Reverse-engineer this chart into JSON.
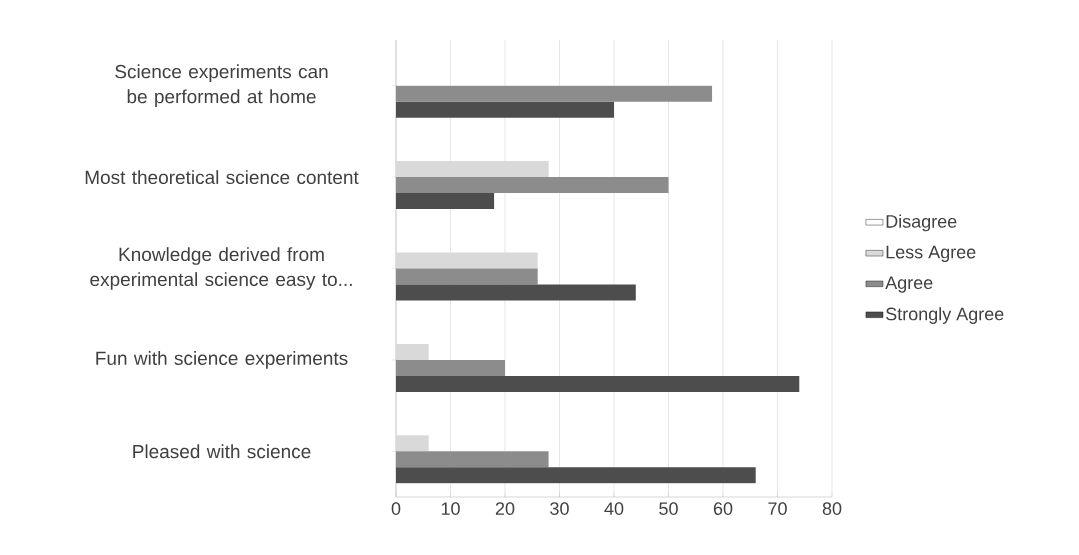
{
  "chart_data": {
    "type": "bar",
    "orientation": "horizontal",
    "categories": [
      "Science experiments can be performed at home",
      "Most theoretical science content",
      "Knowledge derived from experimental science easy to...",
      "Fun with science experiments",
      "Pleased with science"
    ],
    "series": [
      {
        "name": "Disagree",
        "color": "#ffffff",
        "values": [
          0,
          0,
          0,
          0,
          0
        ]
      },
      {
        "name": "Less Agree",
        "color": "#d9d9d9",
        "values": [
          0,
          28,
          26,
          6,
          6
        ]
      },
      {
        "name": "Agree",
        "color": "#8c8c8c",
        "values": [
          58,
          50,
          26,
          20,
          28
        ]
      },
      {
        "name": "Strongly Agree",
        "color": "#4d4d4d",
        "values": [
          40,
          18,
          44,
          74,
          66
        ]
      }
    ],
    "xlim": [
      0,
      80
    ],
    "xticks": [
      0,
      10,
      20,
      30,
      40,
      50,
      60,
      70,
      80
    ],
    "grid": "x",
    "legend": "right"
  }
}
